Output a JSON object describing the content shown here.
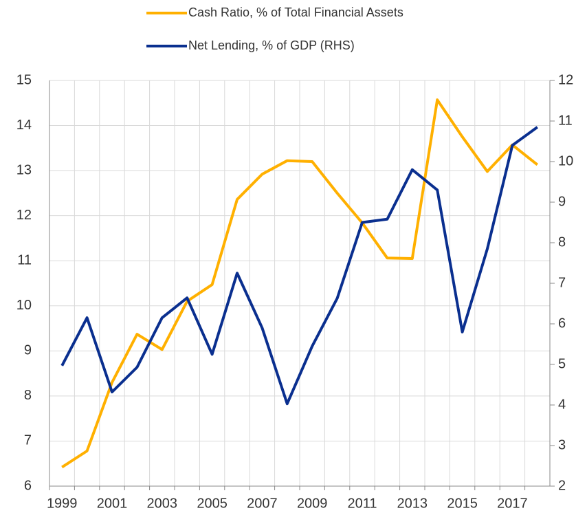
{
  "chart_data": {
    "type": "line",
    "categories": [
      "1999",
      null,
      "2001",
      null,
      "2003",
      null,
      "2005",
      null,
      "2007",
      null,
      "2009",
      null,
      "2011",
      null,
      "2013",
      null,
      "2015",
      null,
      "2017",
      null
    ],
    "series": [
      {
        "name": "Cash Ratio, % of Total Financial Assets",
        "color": "#ffb000",
        "values": [
          6.42,
          6.78,
          8.3,
          9.37,
          9.03,
          10.1,
          10.47,
          12.36,
          12.92,
          13.22,
          13.2,
          12.5,
          11.84,
          11.06,
          11.05,
          14.57,
          13.75,
          12.98,
          13.57,
          13.13
        ]
      },
      {
        "name": "Net Lending, % of GDP (RHS)",
        "color": "#0a2f8f",
        "axis": "y2",
        "values": [
          4.97,
          6.15,
          4.32,
          4.93,
          6.15,
          6.64,
          5.25,
          7.25,
          5.9,
          4.03,
          5.45,
          6.63,
          8.5,
          8.58,
          9.8,
          9.3,
          5.8,
          7.85,
          10.4,
          10.85
        ]
      }
    ],
    "ylim": [
      6,
      15
    ],
    "yticks": [
      6,
      7,
      8,
      9,
      10,
      11,
      12,
      13,
      14,
      15
    ],
    "y2lim": [
      2,
      12
    ],
    "y2ticks": [
      2,
      3,
      4,
      5,
      6,
      7,
      8,
      9,
      10,
      11,
      12
    ],
    "grid": true
  }
}
